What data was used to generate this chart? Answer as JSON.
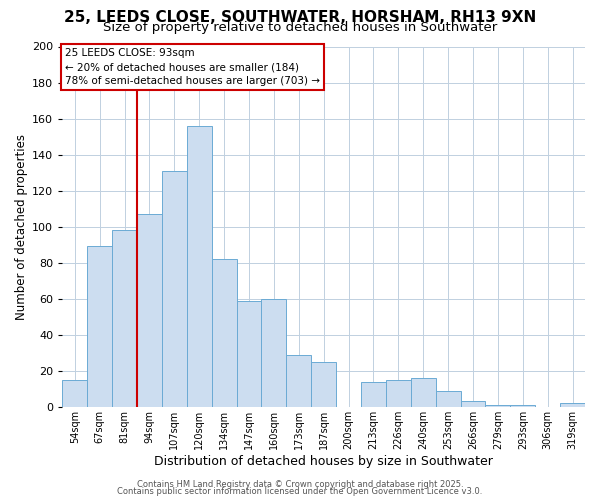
{
  "title": "25, LEEDS CLOSE, SOUTHWATER, HORSHAM, RH13 9XN",
  "subtitle": "Size of property relative to detached houses in Southwater",
  "xlabel": "Distribution of detached houses by size in Southwater",
  "ylabel": "Number of detached properties",
  "bar_labels": [
    "54sqm",
    "67sqm",
    "81sqm",
    "94sqm",
    "107sqm",
    "120sqm",
    "134sqm",
    "147sqm",
    "160sqm",
    "173sqm",
    "187sqm",
    "200sqm",
    "213sqm",
    "226sqm",
    "240sqm",
    "253sqm",
    "266sqm",
    "279sqm",
    "293sqm",
    "306sqm",
    "319sqm"
  ],
  "bar_values": [
    15,
    89,
    98,
    107,
    131,
    156,
    82,
    59,
    60,
    29,
    25,
    0,
    14,
    15,
    16,
    9,
    3,
    1,
    1,
    0,
    2
  ],
  "bar_color": "#ccddf0",
  "bar_edge_color": "#6baad4",
  "ylim": [
    0,
    200
  ],
  "yticks": [
    0,
    20,
    40,
    60,
    80,
    100,
    120,
    140,
    160,
    180,
    200
  ],
  "vline_index": 3,
  "vline_color": "#cc0000",
  "annotation_title": "25 LEEDS CLOSE: 93sqm",
  "annotation_line1": "← 20% of detached houses are smaller (184)",
  "annotation_line2": "78% of semi-detached houses are larger (703) →",
  "annotation_box_color": "#ffffff",
  "annotation_box_edge_color": "#cc0000",
  "footer1": "Contains HM Land Registry data © Crown copyright and database right 2025.",
  "footer2": "Contains public sector information licensed under the Open Government Licence v3.0.",
  "bg_color": "#ffffff",
  "grid_color": "#c0d0e0",
  "title_fontsize": 11,
  "subtitle_fontsize": 9.5,
  "ylabel_fontsize": 8.5,
  "xlabel_fontsize": 9
}
